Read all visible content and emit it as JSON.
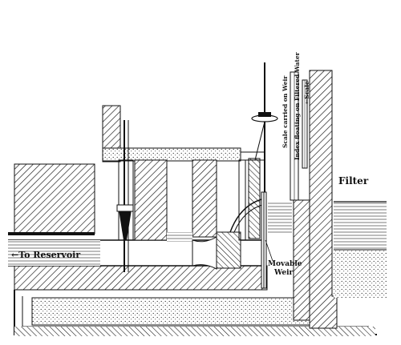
{
  "labels": {
    "filter": "Filter",
    "to_reservoir": "←To Reservoir",
    "movable_weir_line1": "Movable",
    "movable_weir_line2": "Weir",
    "scale_on_weir": "Scale carried on Weir",
    "index_floating": "Index floating on Filtered Water",
    "scale": "←Scale"
  },
  "colors": {
    "ink": "#111111",
    "paper": "#ffffff"
  }
}
